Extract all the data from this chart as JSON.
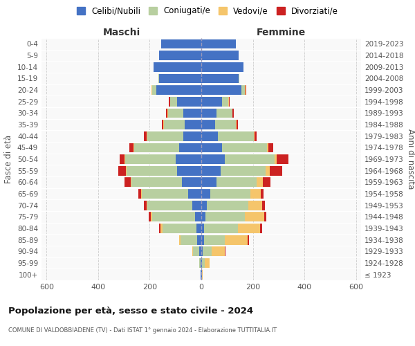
{
  "age_groups": [
    "100+",
    "95-99",
    "90-94",
    "85-89",
    "80-84",
    "75-79",
    "70-74",
    "65-69",
    "60-64",
    "55-59",
    "50-54",
    "45-49",
    "40-44",
    "35-39",
    "30-34",
    "25-29",
    "20-24",
    "15-19",
    "10-14",
    "5-9",
    "0-4"
  ],
  "birth_years": [
    "≤ 1923",
    "1924-1928",
    "1929-1933",
    "1934-1938",
    "1939-1943",
    "1944-1948",
    "1949-1953",
    "1954-1958",
    "1959-1963",
    "1964-1968",
    "1969-1973",
    "1974-1978",
    "1979-1983",
    "1984-1988",
    "1989-1993",
    "1994-1998",
    "1999-2003",
    "2004-2008",
    "2009-2013",
    "2014-2018",
    "2019-2023"
  ],
  "maschi": {
    "celibi": [
      2,
      3,
      8,
      15,
      20,
      25,
      35,
      50,
      75,
      95,
      100,
      85,
      70,
      65,
      70,
      95,
      175,
      165,
      185,
      165,
      155
    ],
    "coniugati": [
      2,
      5,
      25,
      65,
      130,
      165,
      175,
      180,
      195,
      195,
      195,
      175,
      140,
      80,
      60,
      25,
      15,
      2,
      0,
      0,
      0
    ],
    "vedove": [
      0,
      0,
      3,
      5,
      8,
      5,
      3,
      3,
      3,
      3,
      3,
      3,
      3,
      2,
      2,
      2,
      2,
      0,
      0,
      0,
      0
    ],
    "divorziate": [
      0,
      0,
      0,
      0,
      5,
      8,
      10,
      12,
      25,
      30,
      20,
      15,
      10,
      5,
      5,
      3,
      2,
      0,
      0,
      0,
      0
    ]
  },
  "femmine": {
    "nubili": [
      2,
      3,
      5,
      10,
      12,
      15,
      22,
      35,
      60,
      75,
      90,
      80,
      65,
      55,
      60,
      80,
      155,
      145,
      165,
      145,
      135
    ],
    "coniugate": [
      2,
      10,
      35,
      80,
      130,
      155,
      160,
      155,
      155,
      175,
      195,
      175,
      140,
      80,
      60,
      25,
      15,
      2,
      0,
      0,
      0
    ],
    "vedove": [
      2,
      20,
      50,
      90,
      85,
      75,
      55,
      40,
      25,
      15,
      8,
      5,
      3,
      2,
      2,
      2,
      2,
      0,
      0,
      0,
      0
    ],
    "divorziate": [
      0,
      0,
      3,
      5,
      8,
      8,
      10,
      12,
      28,
      50,
      45,
      18,
      8,
      5,
      5,
      3,
      2,
      0,
      0,
      0,
      0
    ]
  },
  "colors": {
    "celibi": "#4472c4",
    "coniugati": "#b8cfa0",
    "vedove": "#f5c56b",
    "divorziate": "#cc2222"
  },
  "xlim": 620,
  "title": "Popolazione per età, sesso e stato civile - 2024",
  "subtitle": "COMUNE DI VALDOBBIADENE (TV) - Dati ISTAT 1° gennaio 2024 - Elaborazione TUTTITALIA.IT",
  "ylabel_left": "Fasce di età",
  "ylabel_right": "Anni di nascita",
  "label_maschi": "Maschi",
  "label_femmine": "Femmine"
}
